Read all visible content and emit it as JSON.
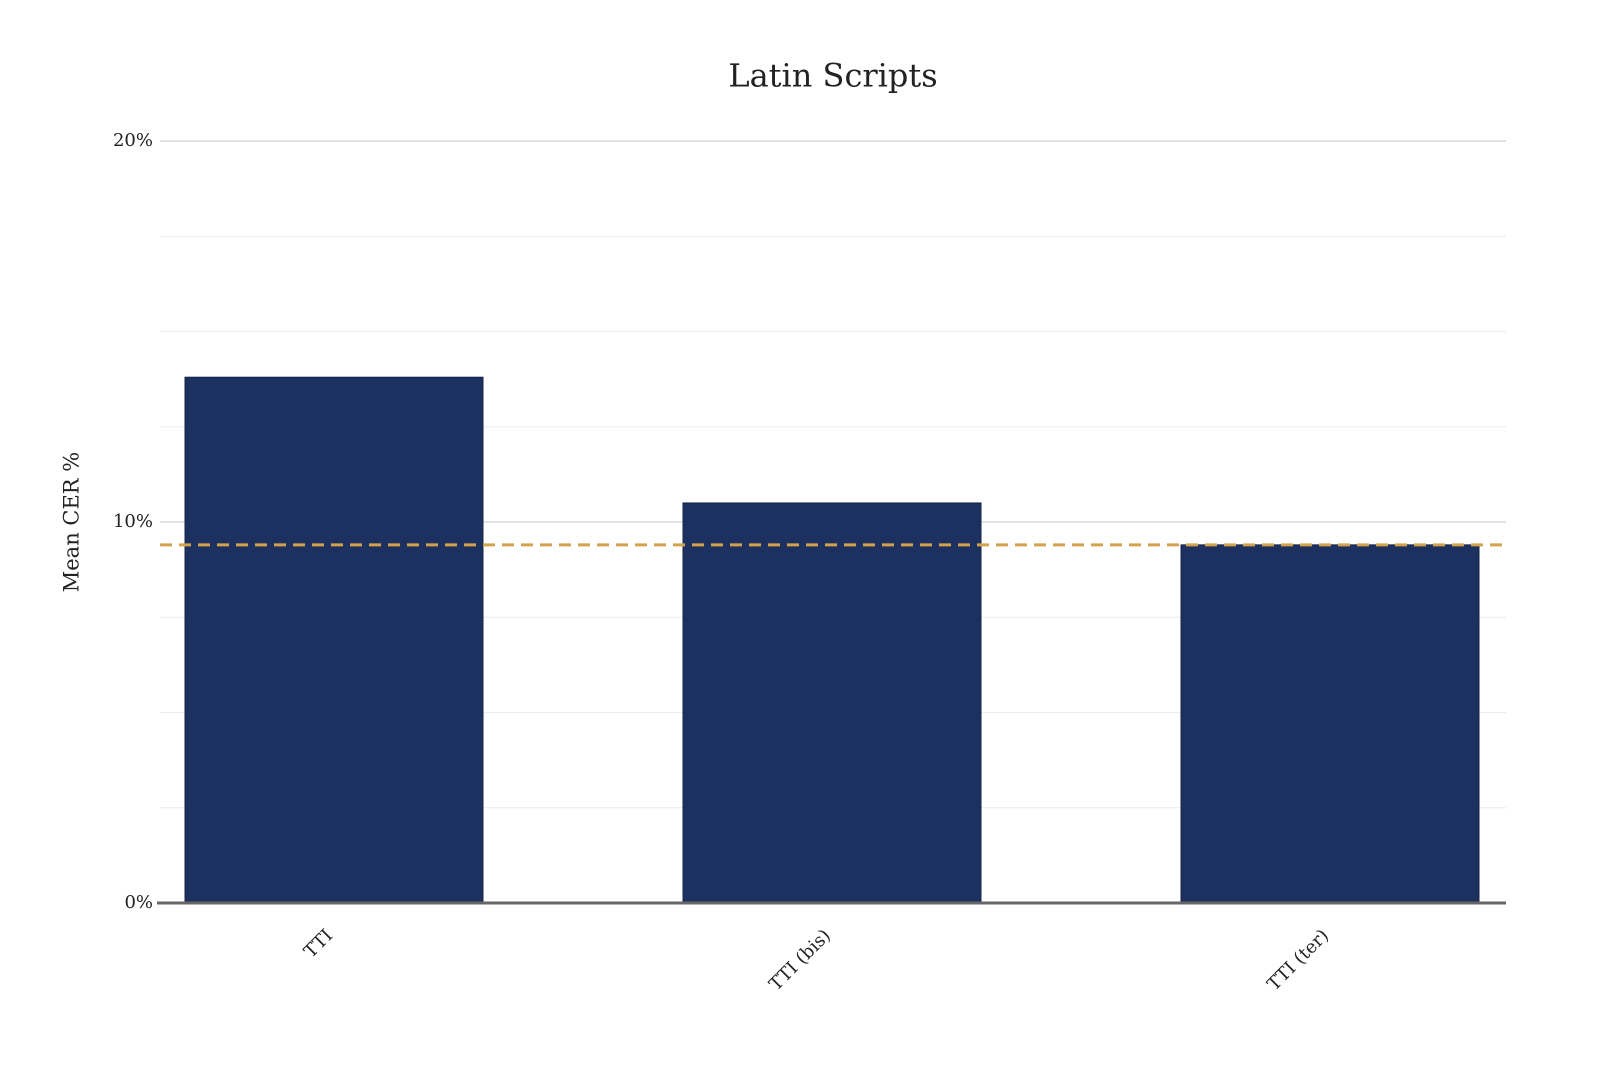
{
  "chart_data": {
    "type": "bar",
    "title": "Latin Scripts",
    "y_label": "Mean CER %",
    "categories": [
      "TTI",
      "TTI (bis)",
      "TTI (ter)"
    ],
    "values": [
      13.8,
      10.5,
      9.4
    ],
    "color": "#1c3160",
    "ylim": [
      0,
      20
    ],
    "yticks": [
      {
        "value": 0,
        "label": "0%"
      },
      {
        "value": 10,
        "label": "10%"
      },
      {
        "value": 20,
        "label": "20%"
      }
    ],
    "minor_yticks": [
      2.5,
      5,
      7.5,
      12.5,
      15,
      17.5
    ],
    "grid": true,
    "reference_line": {
      "value": 9.4,
      "color": "#d4a24c",
      "dashed": true
    }
  }
}
